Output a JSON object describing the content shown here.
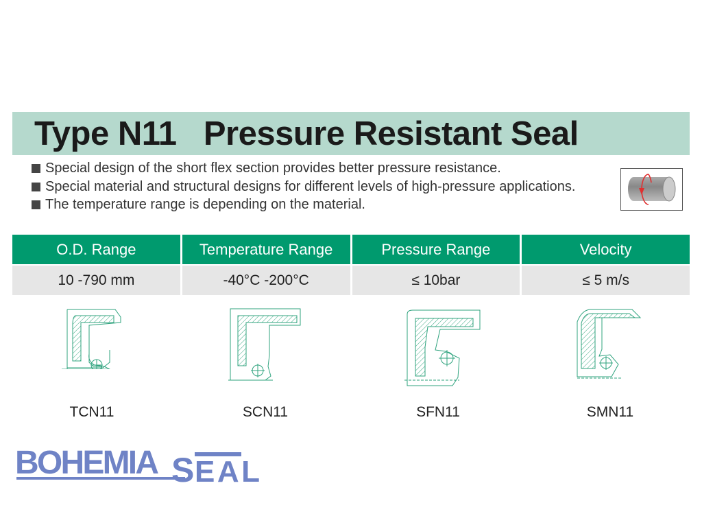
{
  "title": "Type N11   Pressure Resistant Seal",
  "bullets": [
    "Special design of the short flex section provides better pressure resistance.",
    "Special material and structural designs for different levels of high-pressure applications.",
    "The temperature range is depending on the material."
  ],
  "table": {
    "headers": [
      "O.D. Range",
      "Temperature Range",
      "Pressure Range",
      "Velocity"
    ],
    "values": [
      "10 -790 mm",
      "-40°C -200°C",
      "≤ 10bar",
      "≤ 5 m/s"
    ]
  },
  "seals": [
    "TCN11",
    "SCN11",
    "SFN11",
    "SMN11"
  ],
  "logo": "BOHEMIA SEAL",
  "icons": {
    "rotation": "rotating-shaft-icon"
  },
  "colors": {
    "title_bg": "#b5d9cd",
    "header_bg": "#009a6e",
    "row_bg": "#e6e6e6",
    "drawing": "#2fa37e",
    "logo": "#6f83c6"
  }
}
